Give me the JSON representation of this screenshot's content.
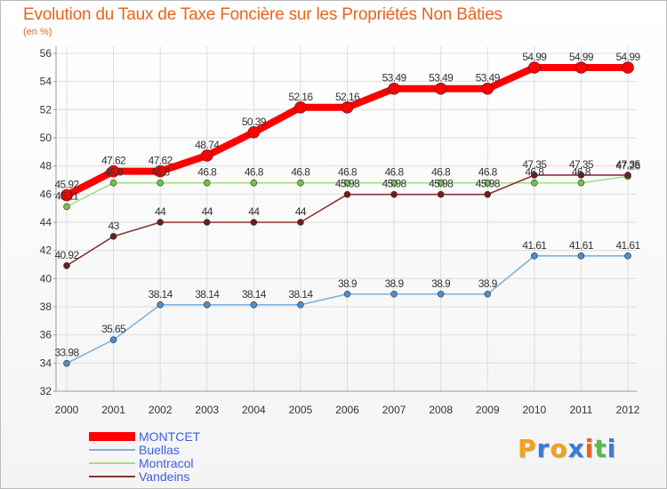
{
  "title": "Evolution du Taux de Taxe Foncière sur les Propriétés Non Bâties",
  "subtitle": "(en %)",
  "logo": {
    "letters": [
      "P",
      "r",
      "o",
      "x",
      "i",
      "t",
      "i"
    ],
    "colors": [
      "#f2a11d",
      "#3a7bd5",
      "#f2a11d",
      "#3a7bd5",
      "#e8641e",
      "#5ab94a",
      "#3a7bd5"
    ]
  },
  "chart_data": {
    "type": "line",
    "x": [
      "2000",
      "2001",
      "2002",
      "2003",
      "2004",
      "2005",
      "2006",
      "2007",
      "2008",
      "2009",
      "2010",
      "2011",
      "2012"
    ],
    "ylim": [
      32,
      56
    ],
    "yticks": [
      32,
      34,
      36,
      38,
      40,
      42,
      44,
      46,
      48,
      50,
      52,
      54,
      56
    ],
    "grid": true,
    "legend_position": "bottom-left",
    "series": [
      {
        "name": "MONTCET",
        "color": "#ff0000",
        "marker": "#ff0000",
        "values": [
          45.92,
          47.62,
          47.62,
          48.74,
          50.39,
          52.16,
          52.16,
          53.49,
          53.49,
          53.49,
          54.99,
          54.99,
          54.99
        ],
        "labels": [
          "45.92",
          "47.62",
          "47.62",
          "48.74",
          "50.39",
          "52.16",
          "52.16",
          "53.49",
          "53.49",
          "53.49",
          "54.99",
          "54.99",
          "54.99"
        ]
      },
      {
        "name": "Buellas",
        "color": "#7fb1dd",
        "marker": "#4a8fcf",
        "values": [
          33.98,
          35.65,
          38.14,
          38.14,
          38.14,
          38.14,
          38.9,
          38.9,
          38.9,
          38.9,
          41.61,
          41.61,
          41.61
        ],
        "labels": [
          "33.98",
          "35.65",
          "38.14",
          "38.14",
          "38.14",
          "38.14",
          "38.9",
          "38.9",
          "38.9",
          "38.9",
          "41.61",
          "41.61",
          "41.61"
        ]
      },
      {
        "name": "Montracol",
        "color": "#a4dd84",
        "marker": "#6fc24a",
        "values": [
          45.11,
          46.8,
          46.8,
          46.8,
          46.8,
          46.8,
          46.8,
          46.8,
          46.8,
          46.8,
          46.8,
          46.8,
          47.26
        ],
        "labels": [
          "45.11",
          "46.8",
          "46.8",
          "46.8",
          "46.8",
          "46.8",
          "46.8",
          "46.8",
          "46.8",
          "46.8",
          "46.8",
          "46.8",
          "47.26"
        ]
      },
      {
        "name": "Vandeins",
        "color": "#8a3434",
        "marker": "#6e1e1e",
        "values": [
          40.92,
          43,
          44,
          44,
          44,
          44,
          45.98,
          45.98,
          45.98,
          45.98,
          47.35,
          47.35,
          47.35
        ],
        "labels": [
          "40.92",
          "43",
          "44",
          "44",
          "44",
          "44",
          "45.98",
          "45.98",
          "45.98",
          "45.98",
          "47.35",
          "47.35",
          "47.35"
        ]
      }
    ]
  }
}
